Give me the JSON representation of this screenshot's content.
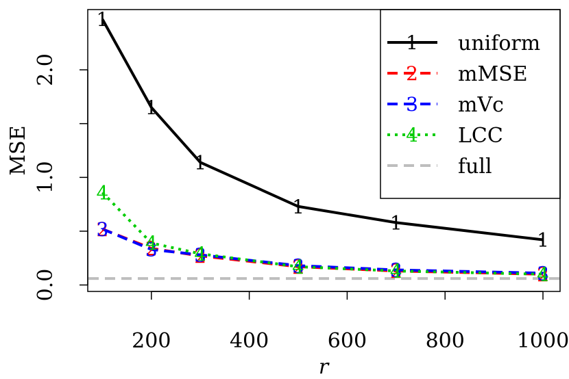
{
  "chart_data": {
    "type": "line",
    "xlabel": "r",
    "ylabel": "MSE",
    "x": [
      100,
      200,
      300,
      500,
      700,
      1000
    ],
    "x_ticks": [
      200,
      400,
      600,
      800,
      1000
    ],
    "x_tick_labels": [
      "200",
      "400",
      "600",
      "800",
      "1000"
    ],
    "y_ticks": [
      0.0,
      0.5,
      1.0,
      1.5,
      2.0
    ],
    "y_tick_labels": [
      "0.0",
      "",
      "1.0",
      "",
      "2.0"
    ],
    "xlim": [
      70,
      1035
    ],
    "ylim": [
      -0.06,
      2.56
    ],
    "grid": false,
    "legend_position": "top-right",
    "series": [
      {
        "name": "uniform",
        "marker": "1",
        "color": "#000000",
        "dash": "solid",
        "values": [
          2.47,
          1.65,
          1.14,
          0.73,
          0.58,
          0.42
        ]
      },
      {
        "name": "mMSE",
        "marker": "2",
        "color": "#ff0000",
        "dash": "dashed",
        "values": [
          0.52,
          0.34,
          0.27,
          0.17,
          0.13,
          0.1
        ]
      },
      {
        "name": "mVc",
        "marker": "3",
        "color": "#0000ff",
        "dash": "dashed",
        "values": [
          0.52,
          0.33,
          0.28,
          0.18,
          0.14,
          0.11
        ]
      },
      {
        "name": "LCC",
        "marker": "4",
        "color": "#00cc00",
        "dash": "dotted",
        "values": [
          0.86,
          0.39,
          0.29,
          0.17,
          0.13,
          0.1
        ]
      }
    ],
    "reference_lines": [
      {
        "name": "full",
        "y": 0.06,
        "color": "#bebebe",
        "dash": "dashed"
      }
    ]
  }
}
